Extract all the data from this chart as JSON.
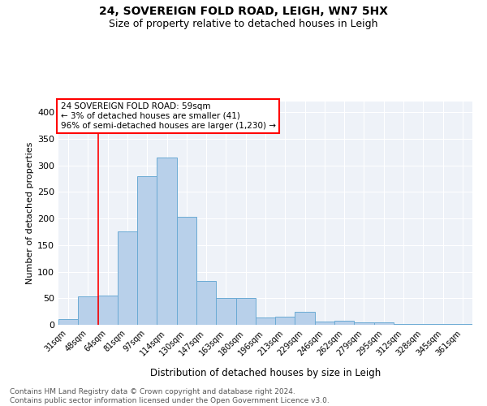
{
  "title1": "24, SOVEREIGN FOLD ROAD, LEIGH, WN7 5HX",
  "title2": "Size of property relative to detached houses in Leigh",
  "xlabel": "Distribution of detached houses by size in Leigh",
  "ylabel": "Number of detached properties",
  "categories": [
    "31sqm",
    "48sqm",
    "64sqm",
    "81sqm",
    "97sqm",
    "114sqm",
    "130sqm",
    "147sqm",
    "163sqm",
    "180sqm",
    "196sqm",
    "213sqm",
    "229sqm",
    "246sqm",
    "262sqm",
    "279sqm",
    "295sqm",
    "312sqm",
    "328sqm",
    "345sqm",
    "361sqm"
  ],
  "values": [
    10,
    53,
    55,
    175,
    280,
    315,
    203,
    82,
    50,
    50,
    14,
    15,
    25,
    6,
    8,
    4,
    5,
    1,
    1,
    1,
    2
  ],
  "bar_color": "#b8d0ea",
  "bar_edge_color": "#6aaad4",
  "vline_color": "red",
  "vline_pos": 1.5,
  "annotation_text": "24 SOVEREIGN FOLD ROAD: 59sqm\n← 3% of detached houses are smaller (41)\n96% of semi-detached houses are larger (1,230) →",
  "annotation_box_color": "white",
  "annotation_box_edge": "red",
  "ylim": [
    0,
    420
  ],
  "yticks": [
    0,
    50,
    100,
    150,
    200,
    250,
    300,
    350,
    400
  ],
  "background_color": "#eef2f8",
  "grid_color": "white",
  "footer": "Contains HM Land Registry data © Crown copyright and database right 2024.\nContains public sector information licensed under the Open Government Licence v3.0."
}
